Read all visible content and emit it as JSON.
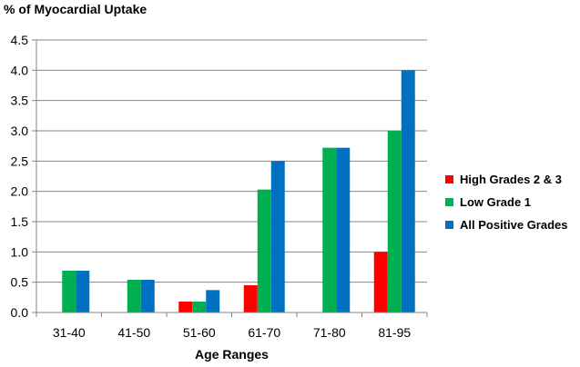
{
  "chart_data": {
    "type": "bar",
    "title": "",
    "ylabel": "% of Myocardial Uptake",
    "xlabel": "Age Ranges",
    "categories": [
      "31-40",
      "41-50",
      "51-60",
      "61-70",
      "71-80",
      "81-95"
    ],
    "ylim": [
      0,
      4.5
    ],
    "yticks": [
      "0.0",
      "0.5",
      "1.0",
      "1.5",
      "2.0",
      "2.5",
      "3.0",
      "3.5",
      "4.0",
      "4.5"
    ],
    "grid": "horizontal",
    "legend_position": "right",
    "series": [
      {
        "name": "High Grades 2 & 3",
        "color": "#ff0000",
        "values": [
          0,
          0,
          0.18,
          0.45,
          0,
          1.0
        ]
      },
      {
        "name": "Low Grade 1",
        "color": "#00b050",
        "values": [
          0.69,
          0.54,
          0.18,
          2.03,
          2.72,
          3.0
        ]
      },
      {
        "name": "All Positive Grades",
        "color": "#0070c0",
        "values": [
          0.69,
          0.54,
          0.37,
          2.5,
          2.72,
          4.0
        ]
      }
    ]
  }
}
